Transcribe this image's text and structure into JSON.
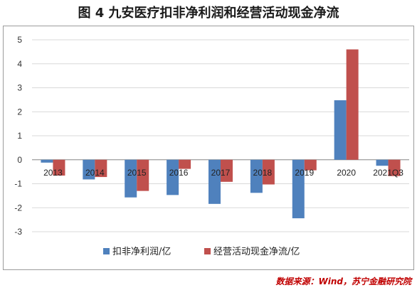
{
  "figure": {
    "title": "图 4  九安医疗扣非净利润和经营活动现金净流",
    "source": "数据来源：Wind，苏宁金融研究院"
  },
  "chart_data": {
    "type": "bar",
    "categories": [
      "2013",
      "2014",
      "2015",
      "2016",
      "2017",
      "2018",
      "2019",
      "2020",
      "2021Q3"
    ],
    "series": [
      {
        "name": "扣非净利润/亿",
        "color": "#4f81bd",
        "values": [
          -0.12,
          -0.82,
          -1.57,
          -1.47,
          -1.84,
          -1.38,
          -2.44,
          2.48,
          -0.25
        ]
      },
      {
        "name": "经营活动现金净流/亿",
        "color": "#c0504d",
        "values": [
          -0.66,
          -0.72,
          -1.3,
          -0.38,
          -0.92,
          -1.03,
          -0.44,
          4.6,
          -0.68
        ]
      }
    ],
    "ylim": [
      -3,
      5
    ],
    "yticks": [
      -3,
      -2,
      -1,
      0,
      1,
      2,
      3,
      4,
      5
    ],
    "grid": true,
    "legend": "bottom"
  }
}
